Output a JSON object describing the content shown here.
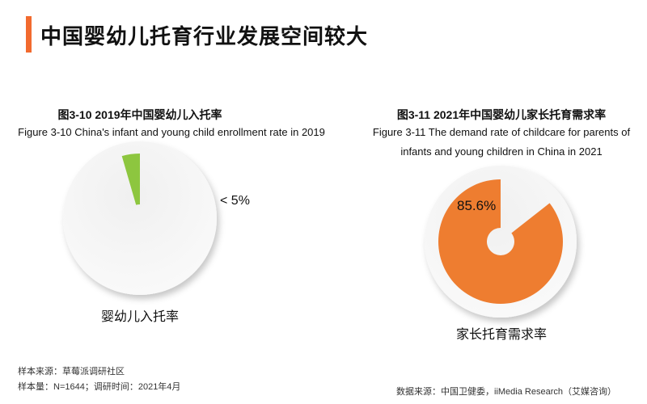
{
  "header": {
    "title": "中国婴幼儿托育行业发展空间较大",
    "accent_color": "#f26a2e"
  },
  "chart_data": [
    {
      "type": "pie",
      "title": "图3-10 2019年中国婴幼儿入托率",
      "subtitle": "Figure 3-10 China's infant and young child enrollment rate in 2019",
      "slices": [
        {
          "name": "婴幼儿入托率",
          "value": 4.5,
          "color": "#8dc63f"
        },
        {
          "name": "",
          "value": 95.5,
          "color": "#f2f2f2"
        }
      ],
      "data_label": "< 5%",
      "legend": "婴幼儿入托率"
    },
    {
      "type": "pie",
      "title": "图3-11 2021年中国婴幼儿家长托育需求率",
      "subtitle_lines": [
        "Figure 3-11 The demand rate of childcare for parents of",
        "infants and young children in China in 2021"
      ],
      "slices": [
        {
          "name": "家长托育需求率",
          "value": 85.6,
          "color": "#ee7d30"
        },
        {
          "name": "",
          "value": 14.4,
          "color": "#f2f2f2"
        }
      ],
      "data_label": "85.6%",
      "legend": "家长托育需求率"
    }
  ],
  "footer": {
    "sample_source": "样本来源：草莓派调研社区",
    "sample_size": "样本量：N=1644；调研时间：2021年4月",
    "data_source": "数据来源：中国卫健委，iiMedia Research（艾媒咨询）"
  }
}
